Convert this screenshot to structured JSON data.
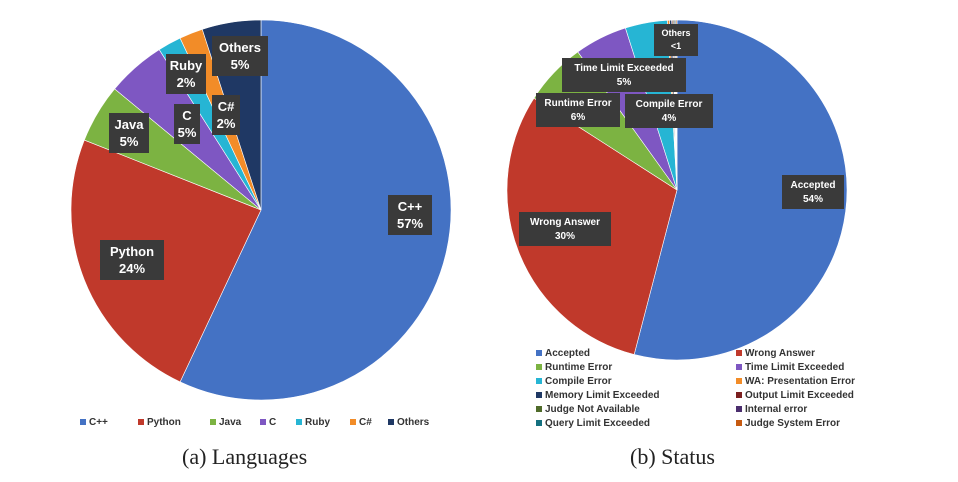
{
  "chart_data": [
    {
      "type": "pie",
      "caption": "(a) Languages",
      "legend_position": "bottom",
      "slices": [
        {
          "name": "C++",
          "value": 57,
          "label": "C++\n57%",
          "color": "#4472c4"
        },
        {
          "name": "Python",
          "value": 24,
          "label": "Python\n24%",
          "color": "#c0392b"
        },
        {
          "name": "Java",
          "value": 5,
          "label": "Java\n5%",
          "color": "#7cb342"
        },
        {
          "name": "C",
          "value": 5,
          "label": "C\n5%",
          "color": "#7e57c2"
        },
        {
          "name": "Ruby",
          "value": 2,
          "label": "Ruby\n2%",
          "color": "#26b5d4"
        },
        {
          "name": "C#",
          "value": 2,
          "label": "C#\n2%",
          "color": "#f28c28"
        },
        {
          "name": "Others",
          "value": 5,
          "label": "Others\n5%",
          "color": "#1f3864"
        }
      ]
    },
    {
      "type": "pie",
      "caption": "(b) Status",
      "legend_position": "bottom",
      "slices": [
        {
          "name": "Accepted",
          "value": 54,
          "label": "Accepted\n54%",
          "color": "#4472c4"
        },
        {
          "name": "Wrong Answer",
          "value": 30,
          "label": "Wrong Answer\n30%",
          "color": "#c0392b"
        },
        {
          "name": "Runtime Error",
          "value": 6,
          "label": "Runtime Error\n6%",
          "color": "#7cb342"
        },
        {
          "name": "Time Limit Exceeded",
          "value": 5,
          "label": "Time Limit Exceeded\n5%",
          "color": "#7e57c2"
        },
        {
          "name": "Compile Error",
          "value": 4,
          "label": "Compile Error\n4%",
          "color": "#26b5d4"
        },
        {
          "name": "WA: Presentation Error",
          "value": 0.2,
          "label": "",
          "color": "#f28c28"
        },
        {
          "name": "Memory Limit Exceeded",
          "value": 0.2,
          "label": "",
          "color": "#1f3864"
        },
        {
          "name": "Output Limit Exceeded",
          "value": 0.1,
          "label": "",
          "color": "#7b1f1f"
        },
        {
          "name": "Judge Not Available",
          "value": 0.1,
          "label": "",
          "color": "#4f6b2a"
        },
        {
          "name": "Internal error",
          "value": 0.1,
          "label": "",
          "color": "#4b2e6e"
        },
        {
          "name": "Query Limit Exceeded",
          "value": 0.1,
          "label": "",
          "color": "#14707f"
        },
        {
          "name": "Judge System Error",
          "value": 0.1,
          "label": "",
          "color": "#c65a11"
        }
      ],
      "extra_label": "Others\n<1"
    }
  ]
}
